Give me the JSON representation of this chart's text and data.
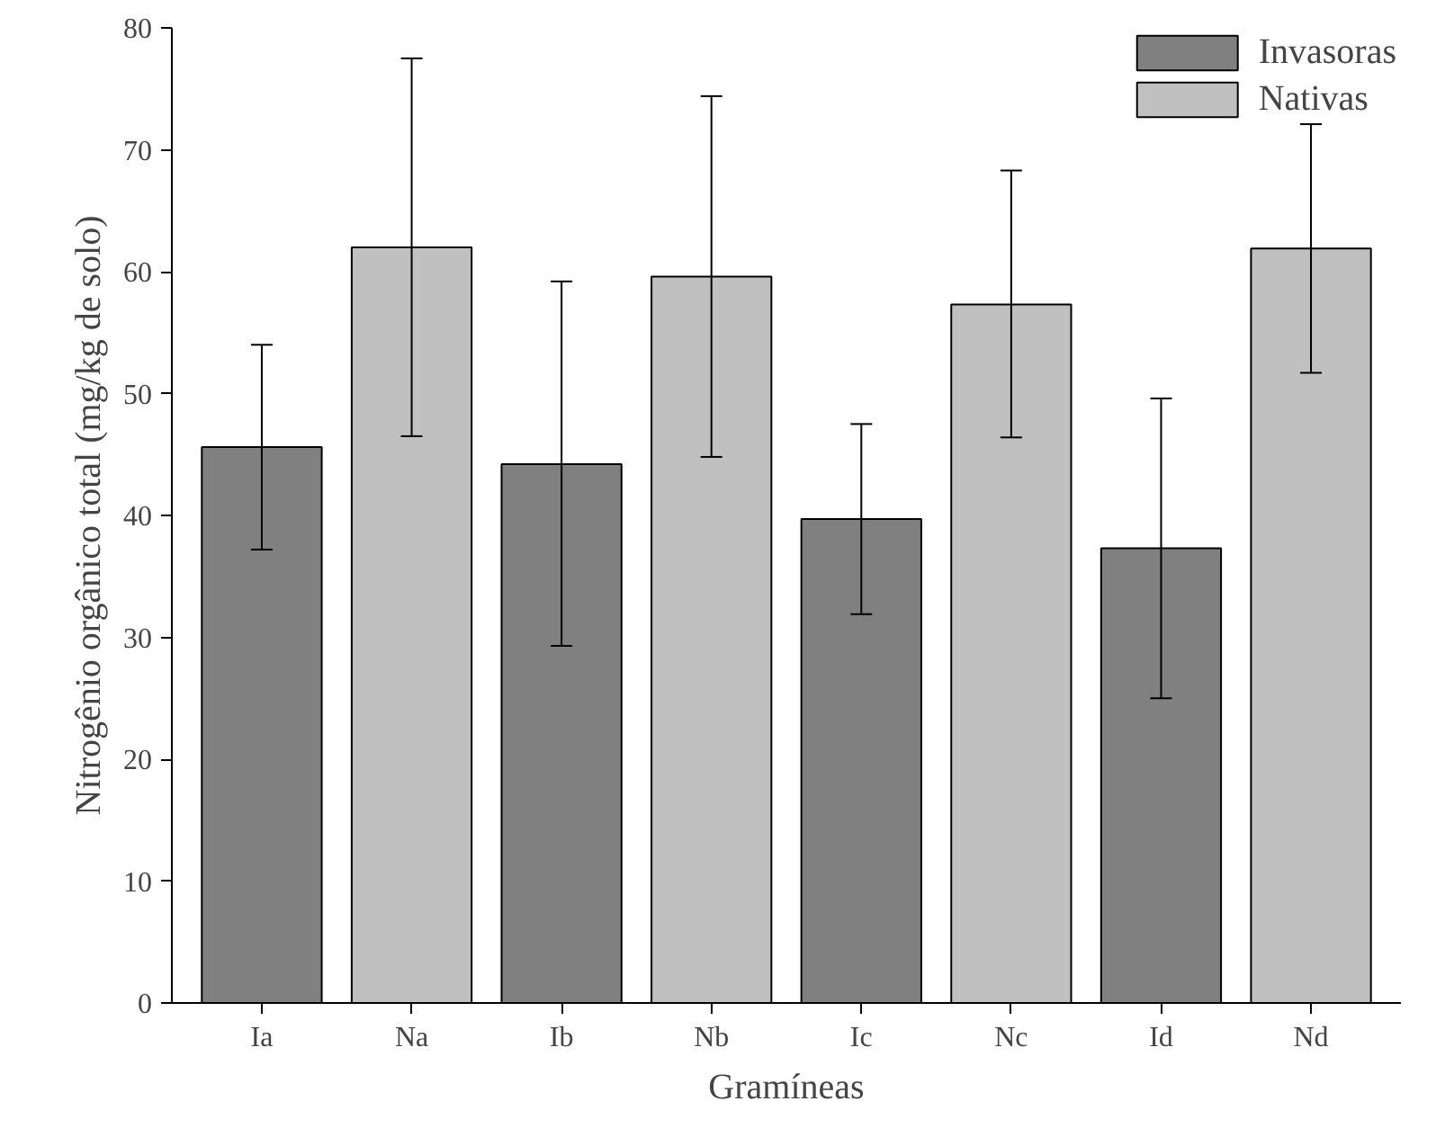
{
  "chart_data": {
    "type": "bar",
    "xlabel": "Gramíneas",
    "ylabel": "Nitrogênio orgânico total (mg/kg de solo)",
    "categories": [
      "Ia",
      "Na",
      "Ib",
      "Nb",
      "Ic",
      "Nc",
      "Id",
      "Nd"
    ],
    "series": [
      {
        "name": "Invasoras",
        "color": "#808080",
        "values": [
          45.6,
          null,
          44.2,
          null,
          39.7,
          null,
          37.3,
          null
        ],
        "errors": [
          [
            37.2,
            54.0
          ],
          null,
          [
            29.3,
            59.2
          ],
          null,
          [
            31.9,
            47.5
          ],
          null,
          [
            25.0,
            49.6
          ],
          null
        ]
      },
      {
        "name": "Nativas",
        "color": "#c0c0c0",
        "values": [
          null,
          62.0,
          null,
          59.6,
          null,
          57.3,
          null,
          61.9
        ],
        "errors": [
          null,
          [
            46.5,
            77.5
          ],
          null,
          [
            44.8,
            74.4
          ],
          null,
          [
            46.4,
            68.3
          ],
          null,
          [
            51.7,
            72.1
          ]
        ]
      }
    ],
    "ylim": [
      0,
      80
    ],
    "yticks": [
      0,
      10,
      20,
      30,
      40,
      50,
      60,
      70,
      80
    ],
    "grid": false,
    "legend": "top right"
  }
}
